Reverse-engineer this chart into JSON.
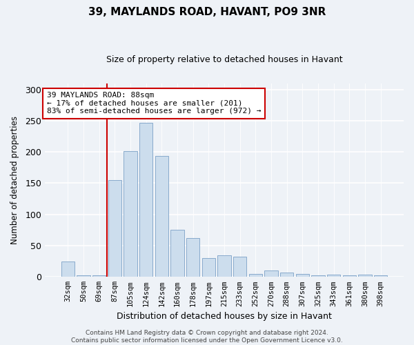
{
  "title": "39, MAYLANDS ROAD, HAVANT, PO9 3NR",
  "subtitle": "Size of property relative to detached houses in Havant",
  "xlabel": "Distribution of detached houses by size in Havant",
  "ylabel": "Number of detached properties",
  "categories": [
    "32sqm",
    "50sqm",
    "69sqm",
    "87sqm",
    "105sqm",
    "124sqm",
    "142sqm",
    "160sqm",
    "178sqm",
    "197sqm",
    "215sqm",
    "233sqm",
    "252sqm",
    "270sqm",
    "288sqm",
    "307sqm",
    "325sqm",
    "343sqm",
    "361sqm",
    "380sqm",
    "398sqm"
  ],
  "values": [
    25,
    3,
    3,
    155,
    201,
    247,
    194,
    75,
    62,
    30,
    35,
    32,
    5,
    10,
    7,
    5,
    3,
    4,
    3,
    4,
    3
  ],
  "bar_color": "#ccdded",
  "bar_edge_color": "#88aacc",
  "highlight_index": 3,
  "red_line_color": "#cc0000",
  "annotation_text": "39 MAYLANDS ROAD: 88sqm\n← 17% of detached houses are smaller (201)\n83% of semi-detached houses are larger (972) →",
  "annotation_box_color": "white",
  "annotation_box_edge": "#cc0000",
  "ylim": [
    0,
    310
  ],
  "yticks": [
    0,
    50,
    100,
    150,
    200,
    250,
    300
  ],
  "footnote": "Contains HM Land Registry data © Crown copyright and database right 2024.\nContains public sector information licensed under the Open Government Licence v3.0.",
  "bg_color": "#eef2f7",
  "plot_bg_color": "#eef2f7",
  "title_fontsize": 11,
  "subtitle_fontsize": 9
}
